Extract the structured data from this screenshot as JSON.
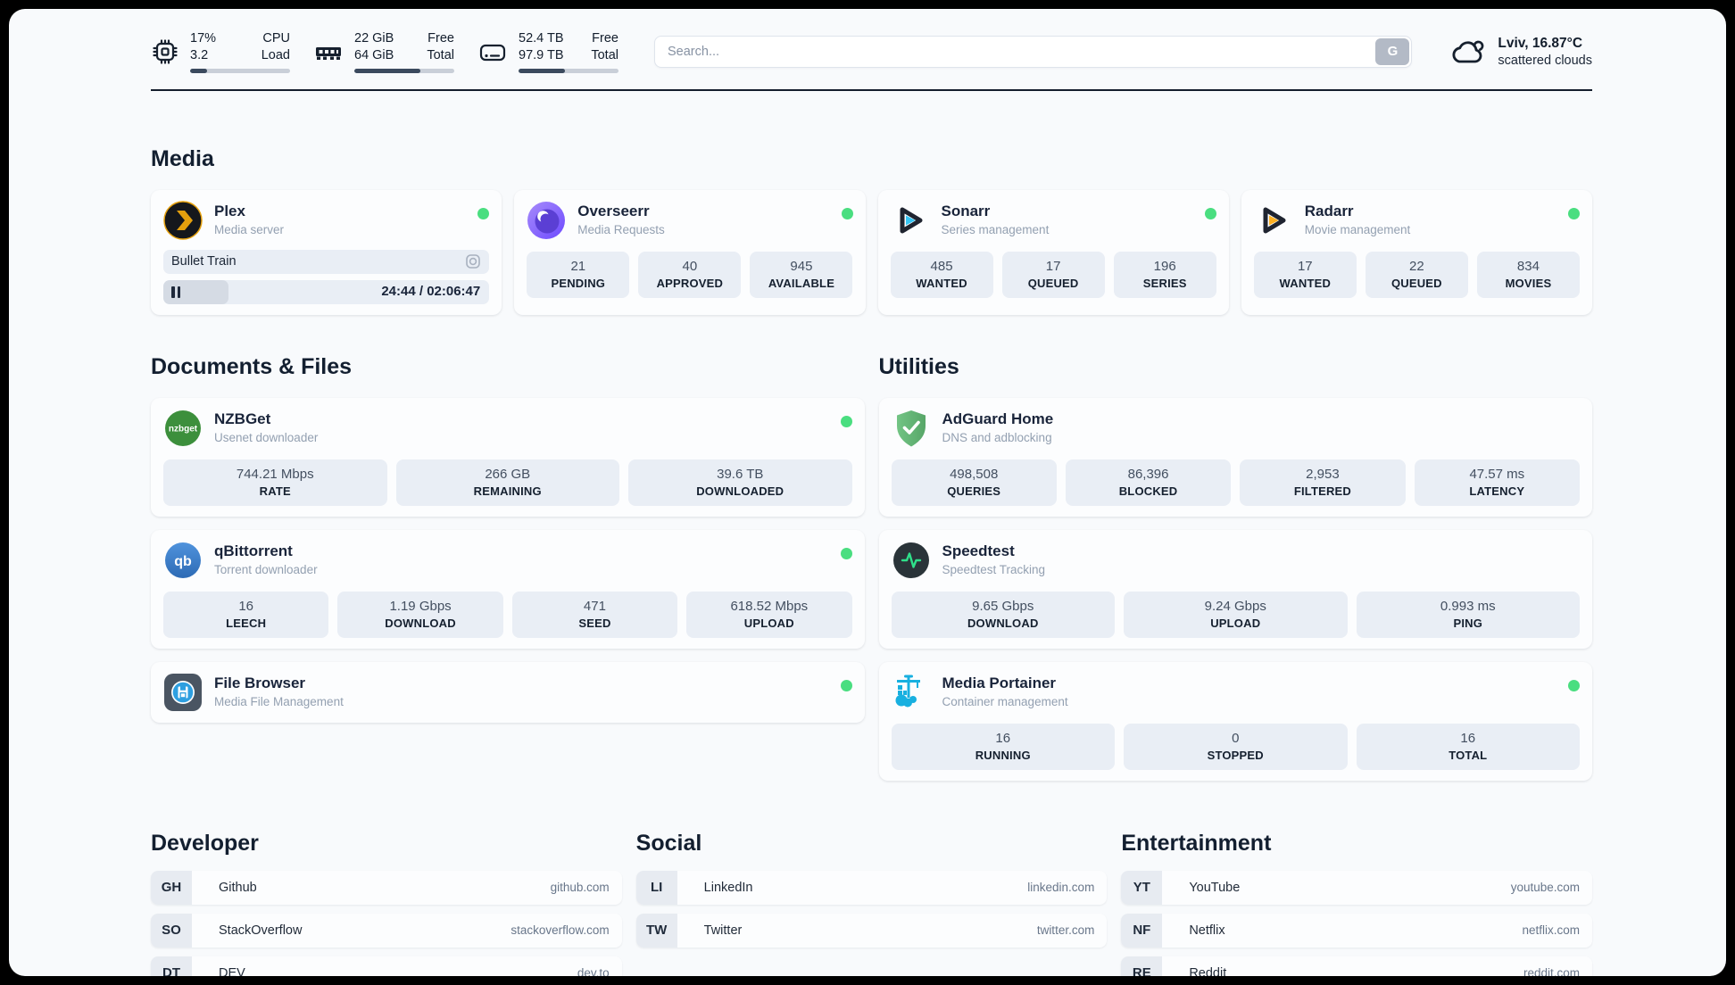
{
  "header": {
    "metrics": [
      {
        "icon": "cpu-icon",
        "values": [
          "17%",
          "3.2"
        ],
        "labels": [
          "CPU",
          "Load"
        ],
        "progress": 17
      },
      {
        "icon": "ram-icon",
        "values": [
          "22 GiB",
          "64 GiB"
        ],
        "labels": [
          "Free",
          "Total"
        ],
        "progress": 66
      },
      {
        "icon": "disk-icon",
        "values": [
          "52.4 TB",
          "97.9 TB"
        ],
        "labels": [
          "Free",
          "Total"
        ],
        "progress": 46
      }
    ],
    "search": {
      "placeholder": "Search...",
      "button_label": "G"
    },
    "weather": {
      "location": "Lviv, 16.87°C",
      "condition": "scattered clouds"
    }
  },
  "colors": {
    "status_online": "#4ade80",
    "plex_orange": "#e5a00d",
    "sonarr_cyan": "#35c5f4",
    "radarr_yellow": "#fdb022",
    "adguard_green": "#67b279",
    "portainer_blue": "#18b0e0"
  },
  "sections": {
    "media": {
      "title": "Media",
      "plex": {
        "name": "Plex",
        "subtitle": "Media server",
        "online": true,
        "now_playing": "Bullet Train",
        "time_display": "24:44 / 02:06:47",
        "progress_percent": 20
      },
      "overseerr": {
        "name": "Overseerr",
        "subtitle": "Media Requests",
        "online": true,
        "stats": [
          {
            "value": "21",
            "label": "PENDING"
          },
          {
            "value": "40",
            "label": "APPROVED"
          },
          {
            "value": "945",
            "label": "AVAILABLE"
          }
        ]
      },
      "sonarr": {
        "name": "Sonarr",
        "subtitle": "Series management",
        "online": true,
        "stats": [
          {
            "value": "485",
            "label": "WANTED"
          },
          {
            "value": "17",
            "label": "QUEUED"
          },
          {
            "value": "196",
            "label": "SERIES"
          }
        ]
      },
      "radarr": {
        "name": "Radarr",
        "subtitle": "Movie management",
        "online": true,
        "stats": [
          {
            "value": "17",
            "label": "WANTED"
          },
          {
            "value": "22",
            "label": "QUEUED"
          },
          {
            "value": "834",
            "label": "MOVIES"
          }
        ]
      }
    },
    "documents": {
      "title": "Documents & Files",
      "nzbget": {
        "name": "NZBGet",
        "subtitle": "Usenet downloader",
        "online": true,
        "stats": [
          {
            "value": "744.21 Mbps",
            "label": "RATE"
          },
          {
            "value": "266 GB",
            "label": "REMAINING"
          },
          {
            "value": "39.6 TB",
            "label": "DOWNLOADED"
          }
        ]
      },
      "qbittorrent": {
        "name": "qBittorrent",
        "subtitle": "Torrent downloader",
        "online": true,
        "stats": [
          {
            "value": "16",
            "label": "LEECH"
          },
          {
            "value": "1.19 Gbps",
            "label": "DOWNLOAD"
          },
          {
            "value": "471",
            "label": "SEED"
          },
          {
            "value": "618.52 Mbps",
            "label": "UPLOAD"
          }
        ]
      },
      "filebrowser": {
        "name": "File Browser",
        "subtitle": "Media File Management",
        "online": true
      }
    },
    "utilities": {
      "title": "Utilities",
      "adguard": {
        "name": "AdGuard Home",
        "subtitle": "DNS and adblocking",
        "online": false,
        "stats": [
          {
            "value": "498,508",
            "label": "QUERIES"
          },
          {
            "value": "86,396",
            "label": "BLOCKED"
          },
          {
            "value": "2,953",
            "label": "FILTERED"
          },
          {
            "value": "47.57 ms",
            "label": "LATENCY"
          }
        ]
      },
      "speedtest": {
        "name": "Speedtest",
        "subtitle": "Speedtest Tracking",
        "online": false,
        "stats": [
          {
            "value": "9.65 Gbps",
            "label": "DOWNLOAD"
          },
          {
            "value": "9.24 Gbps",
            "label": "UPLOAD"
          },
          {
            "value": "0.993 ms",
            "label": "PING"
          }
        ]
      },
      "portainer": {
        "name": "Media Portainer",
        "subtitle": "Container management",
        "online": true,
        "stats": [
          {
            "value": "16",
            "label": "RUNNING"
          },
          {
            "value": "0",
            "label": "STOPPED"
          },
          {
            "value": "16",
            "label": "TOTAL"
          }
        ]
      }
    },
    "developer": {
      "title": "Developer",
      "links": [
        {
          "tag": "GH",
          "name": "Github",
          "url": "github.com"
        },
        {
          "tag": "SO",
          "name": "StackOverflow",
          "url": "stackoverflow.com"
        },
        {
          "tag": "DT",
          "name": "DEV",
          "url": "dev.to"
        }
      ]
    },
    "social": {
      "title": "Social",
      "links": [
        {
          "tag": "LI",
          "name": "LinkedIn",
          "url": "linkedin.com"
        },
        {
          "tag": "TW",
          "name": "Twitter",
          "url": "twitter.com"
        }
      ]
    },
    "entertainment": {
      "title": "Entertainment",
      "links": [
        {
          "tag": "YT",
          "name": "YouTube",
          "url": "youtube.com"
        },
        {
          "tag": "NF",
          "name": "Netflix",
          "url": "netflix.com"
        },
        {
          "tag": "RE",
          "name": "Reddit",
          "url": "reddit.com"
        }
      ]
    }
  }
}
